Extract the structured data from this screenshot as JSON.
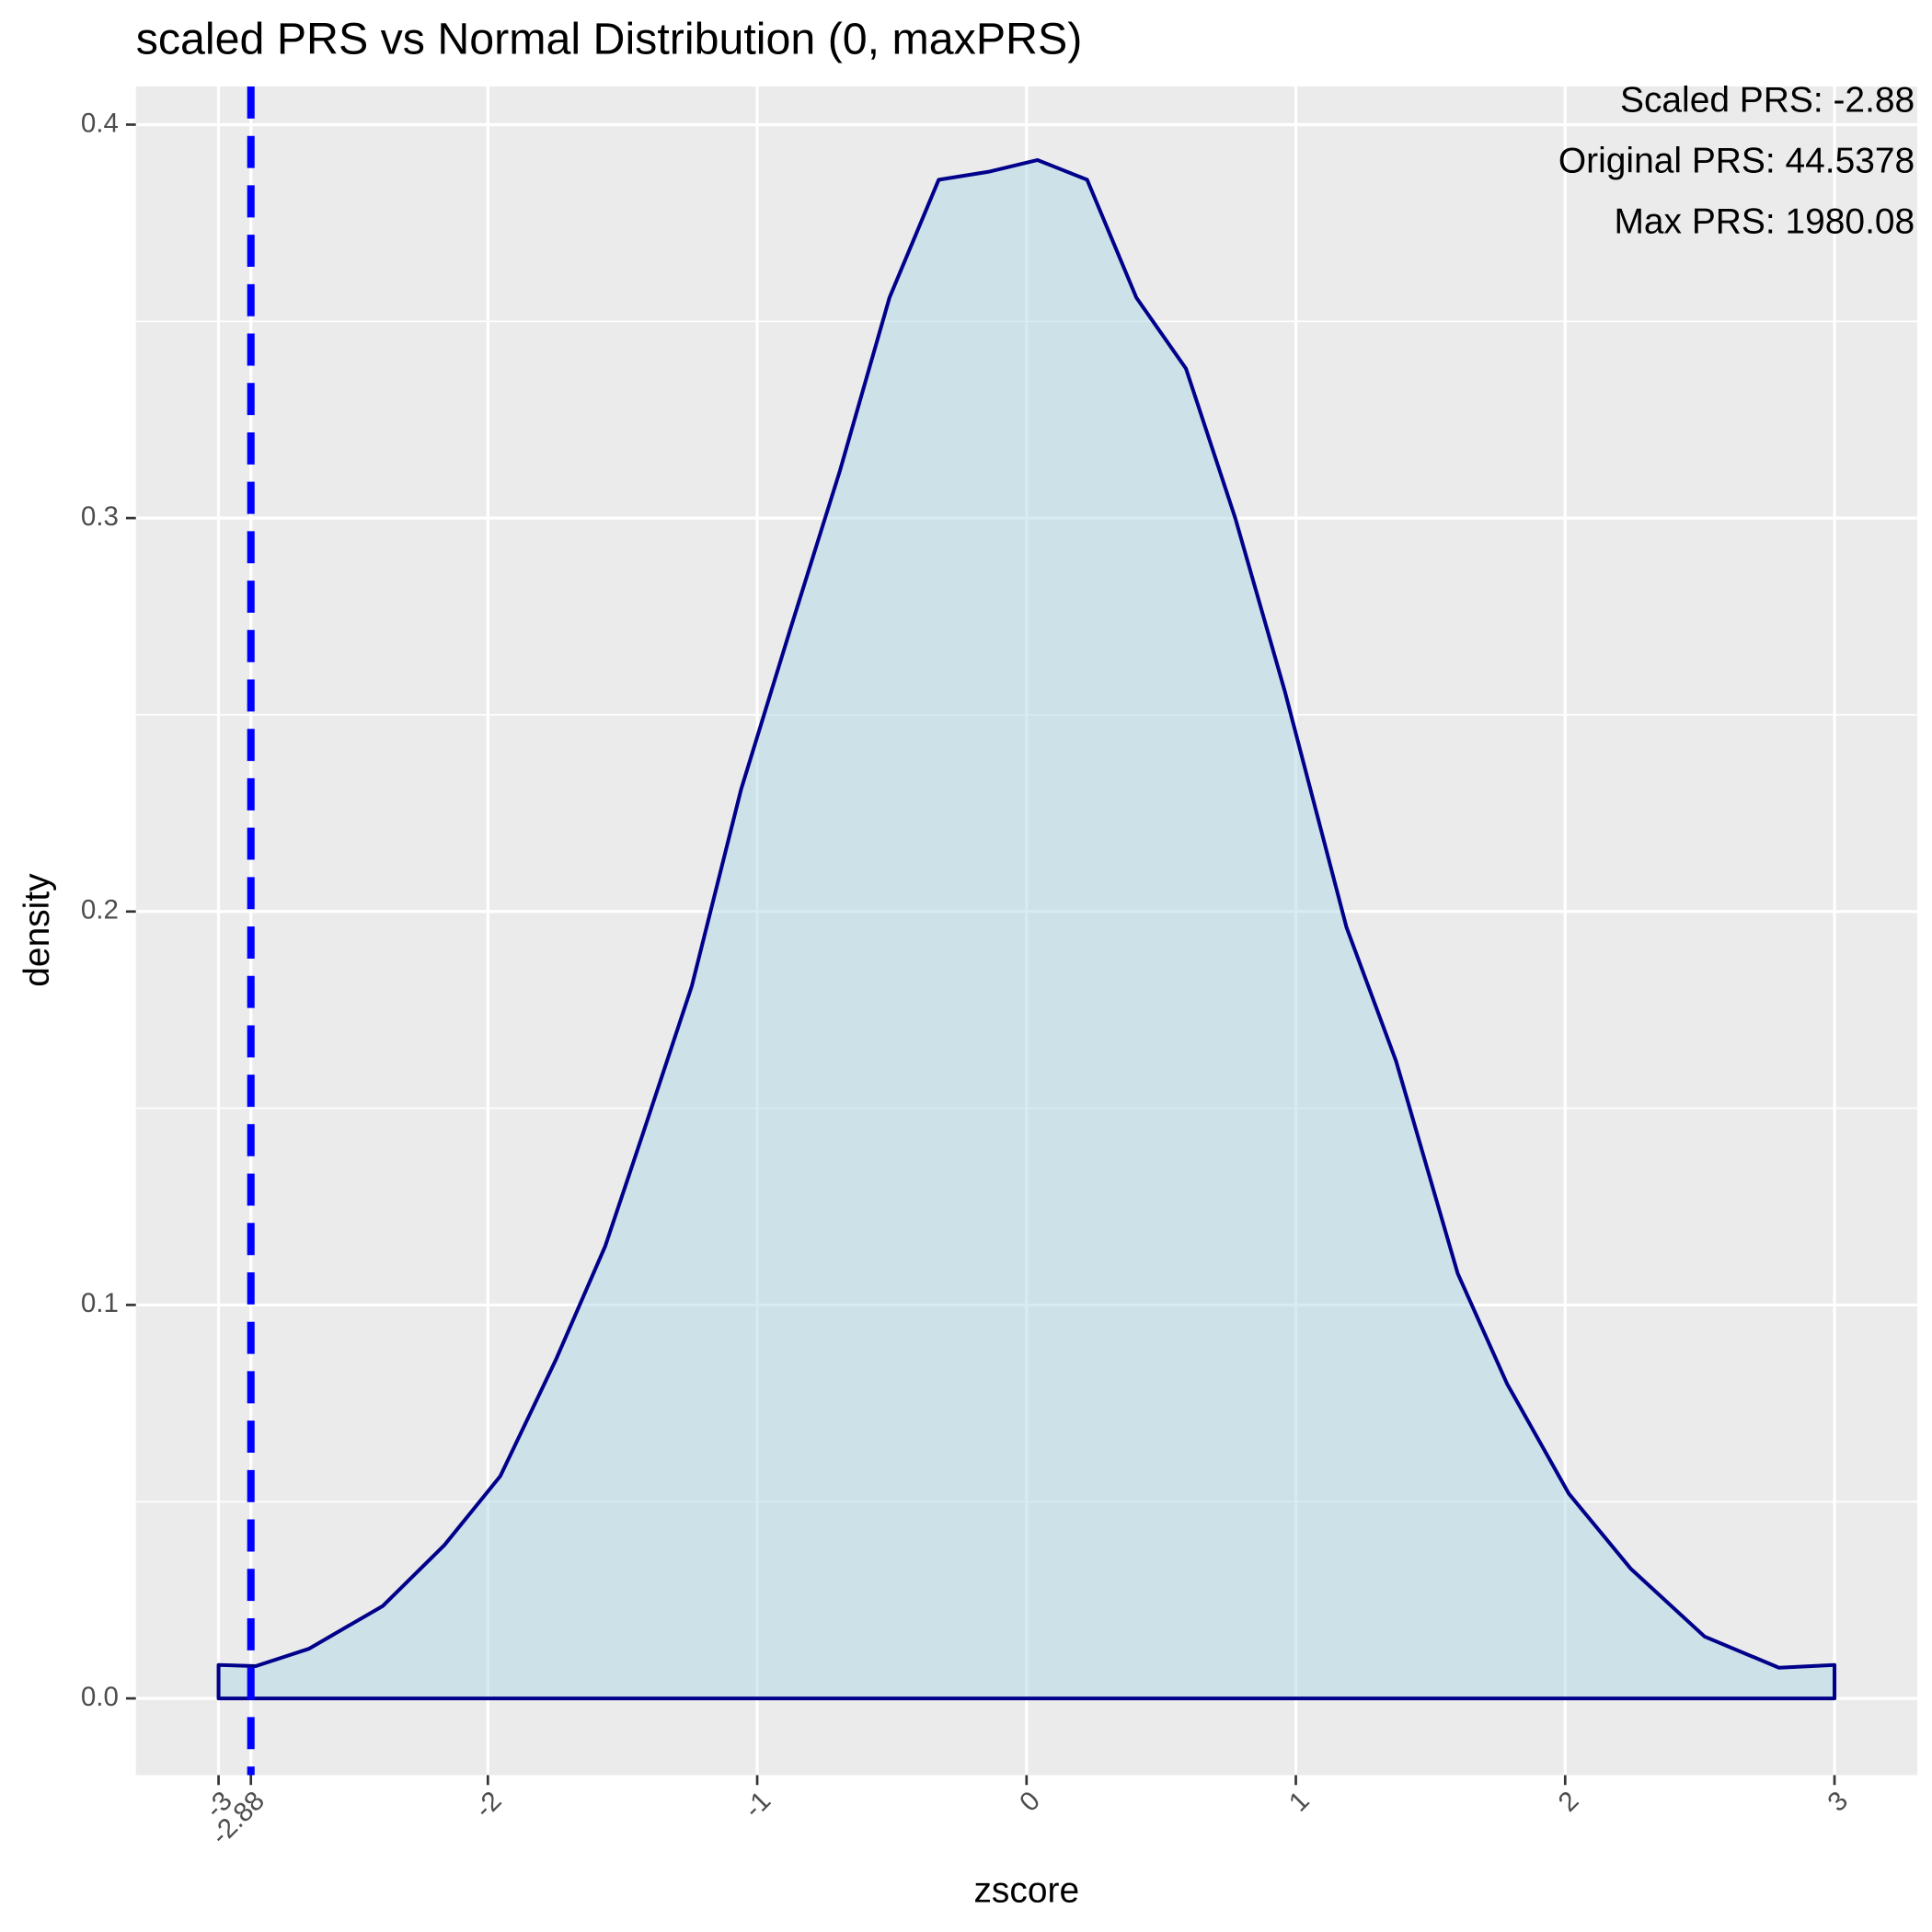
{
  "chart_data": {
    "type": "area",
    "title": "scaled PRS vs Normal Distribution (0, maxPRS)",
    "x_label": "zscore",
    "y_label": "density",
    "x": [
      -3.0,
      -2.862,
      -2.665,
      -2.39,
      -2.161,
      -1.954,
      -1.748,
      -1.564,
      -1.427,
      -1.243,
      -1.06,
      -0.876,
      -0.693,
      -0.509,
      -0.326,
      -0.142,
      0.041,
      0.225,
      0.408,
      0.592,
      0.775,
      0.959,
      1.188,
      1.372,
      1.601,
      1.784,
      2.014,
      2.243,
      2.518,
      2.794,
      3.0
    ],
    "series": [
      {
        "color": "#00008b",
        "fill": "#add8e6",
        "values": [
          0.0085,
          0.0082,
          0.0126,
          0.0235,
          0.039,
          0.0565,
          0.086,
          0.115,
          0.143,
          0.181,
          0.231,
          0.272,
          0.312,
          0.356,
          0.386,
          0.388,
          0.391,
          0.386,
          0.356,
          0.338,
          0.3,
          0.256,
          0.196,
          0.162,
          0.108,
          0.08,
          0.052,
          0.033,
          0.0157,
          0.0078,
          0.0085
        ]
      }
    ],
    "vline": {
      "value": -2.88,
      "color": "#0000ff"
    },
    "annotations": [
      "Scaled PRS: -2.88",
      "Original PRS: 44.5378",
      "Max PRS: 1980.08"
    ],
    "xlim": [
      -3.307,
      3.307
    ],
    "ylim": [
      -0.0195,
      0.4097
    ],
    "xticks": [
      -3,
      {
        "value": -2.88,
        "label": "-2.88"
      },
      -2,
      -1,
      0,
      1,
      2,
      3
    ],
    "yticks": [
      {
        "value": 0,
        "label": "0.0"
      },
      0.1,
      0.2,
      0.3,
      0.4
    ],
    "yminor": [
      0.05,
      0.15,
      0.25,
      0.35
    ],
    "grid": true
  }
}
